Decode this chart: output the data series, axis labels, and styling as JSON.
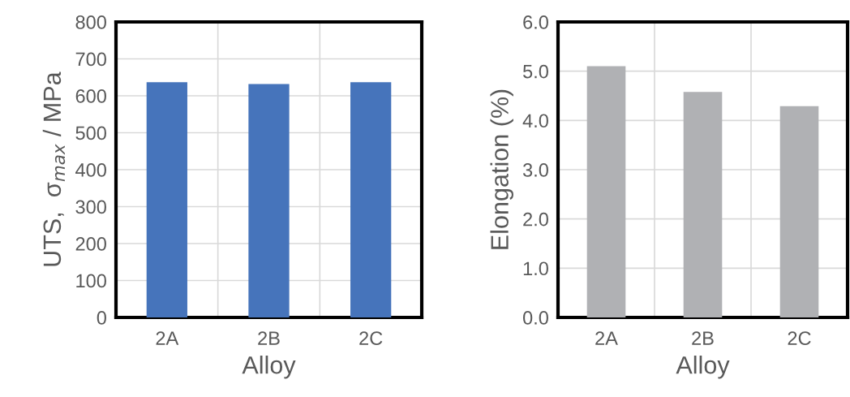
{
  "chart_data": [
    {
      "type": "bar",
      "xlabel": "Alloy",
      "ylabel": "UTS,  σ$_{max}$ / MPa",
      "categories": [
        "2A",
        "2B",
        "2C"
      ],
      "values": [
        637,
        632,
        637
      ],
      "color": "#4674bb",
      "ylim": [
        0,
        800
      ],
      "yticks": [
        0,
        100,
        200,
        300,
        400,
        500,
        600,
        700,
        800
      ],
      "grid": true
    },
    {
      "type": "bar",
      "xlabel": "Alloy",
      "ylabel": "Elongation (%)",
      "categories": [
        "2A",
        "2B",
        "2C"
      ],
      "values": [
        5.1,
        4.58,
        4.29
      ],
      "color": "#b0b1b4",
      "ylim": [
        0,
        6
      ],
      "yticks": [
        {
          "value": 0,
          "label": "0.0"
        },
        {
          "value": 1,
          "label": "1.0"
        },
        {
          "value": 2,
          "label": "2.0"
        },
        {
          "value": 3,
          "label": "3.0"
        },
        {
          "value": 4,
          "label": "4.0"
        },
        {
          "value": 5,
          "label": "5.0"
        },
        {
          "value": 6,
          "label": "6.0"
        }
      ],
      "grid": true
    }
  ]
}
